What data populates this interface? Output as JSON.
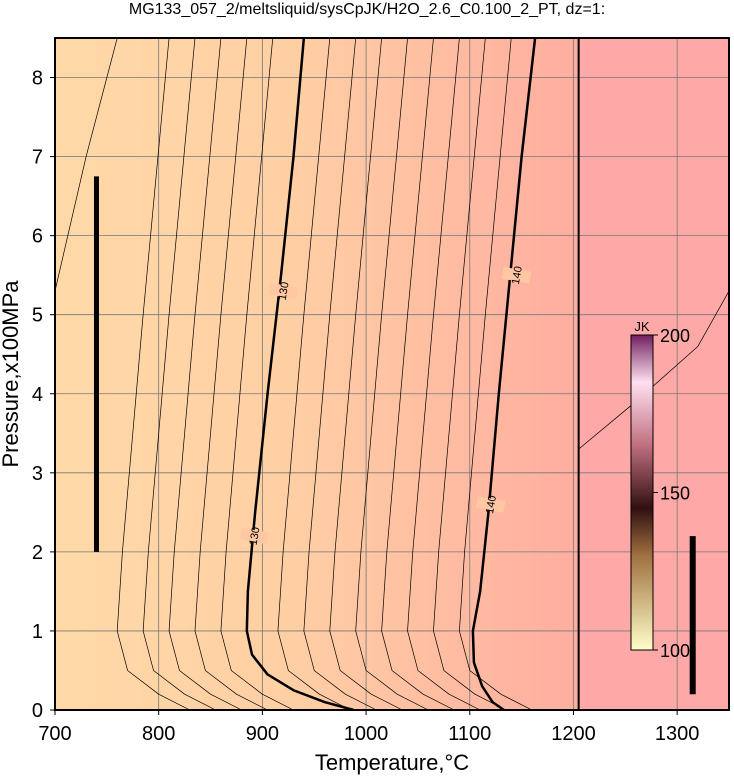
{
  "chart_data": {
    "type": "contour",
    "title": "MG133_057_2/meltsliquid/sysCpJK/H2O_2.6_C0.100_2_PT, dz=1:",
    "x_label": "Temperature,°C",
    "y_label": "Pressure,x100MPa",
    "xlim": [
      700,
      1350
    ],
    "ylim": [
      0,
      8.5
    ],
    "xticks": [
      700,
      800,
      900,
      1000,
      1100,
      1200,
      1300
    ],
    "yticks": [
      0,
      1,
      2,
      3,
      4,
      5,
      6,
      7,
      8
    ],
    "grid": true,
    "series": [
      {
        "name": "130",
        "color": "#000000",
        "width": 2.5,
        "x": [
          940,
          930,
          918,
          905,
          893,
          886,
          885,
          890,
          905,
          930,
          960,
          988
        ],
        "y": [
          8.5,
          7,
          5.5,
          4,
          2.5,
          1.5,
          1,
          0.7,
          0.45,
          0.25,
          0.1,
          0
        ]
      },
      {
        "name": "140",
        "color": "#000000",
        "width": 2.5,
        "x": [
          1163,
          1150,
          1139,
          1128,
          1118,
          1110,
          1103,
          1104,
          1112,
          1122,
          1133
        ],
        "y": [
          8.5,
          7,
          5.5,
          4,
          2.5,
          1.5,
          1,
          0.6,
          0.3,
          0.1,
          0
        ]
      },
      {
        "color": "#000000",
        "width": 2,
        "x": [
          1205,
          1205
        ],
        "y": [
          0,
          8.5
        ]
      },
      {
        "color": "#000000",
        "width": 5,
        "x": [
          740,
          740
        ],
        "y": [
          2,
          6.75
        ]
      },
      {
        "color": "#000000",
        "width": 6,
        "x": [
          1315,
          1315
        ],
        "y": [
          0.2,
          2.2
        ]
      },
      {
        "color": "#000000",
        "width": 0.7,
        "x": [
          700,
          730,
          760
        ],
        "y": [
          5.3,
          7,
          8.5
        ]
      },
      {
        "color": "#000000",
        "width": 0.7,
        "x": [
          810,
          785,
          765,
          760,
          770,
          800,
          830
        ],
        "y": [
          8.5,
          5,
          2,
          1,
          0.5,
          0.2,
          0
        ]
      },
      {
        "color": "#000000",
        "width": 0.7,
        "x": [
          835,
          810,
          790,
          785,
          795,
          825,
          855
        ],
        "y": [
          8.5,
          5,
          2,
          1,
          0.5,
          0.2,
          0
        ]
      },
      {
        "color": "#000000",
        "width": 0.7,
        "x": [
          860,
          835,
          815,
          810,
          820,
          850,
          880
        ],
        "y": [
          8.5,
          5,
          2,
          1,
          0.5,
          0.2,
          0
        ]
      },
      {
        "color": "#000000",
        "width": 0.7,
        "x": [
          885,
          860,
          840,
          835,
          845,
          875,
          905
        ],
        "y": [
          8.5,
          5,
          2,
          1,
          0.5,
          0.2,
          0
        ]
      },
      {
        "color": "#000000",
        "width": 0.7,
        "x": [
          910,
          885,
          865,
          860,
          870,
          900,
          930
        ],
        "y": [
          8.5,
          5,
          2,
          1,
          0.5,
          0.2,
          0
        ]
      },
      {
        "color": "#000000",
        "width": 0.7,
        "x": [
          965,
          940,
          920,
          915,
          925,
          955,
          985
        ],
        "y": [
          8.5,
          5,
          2,
          1,
          0.5,
          0.2,
          0
        ]
      },
      {
        "color": "#000000",
        "width": 0.7,
        "x": [
          990,
          965,
          945,
          940,
          950,
          980,
          1010
        ],
        "y": [
          8.5,
          5,
          2,
          1,
          0.5,
          0.2,
          0
        ]
      },
      {
        "color": "#000000",
        "width": 0.7,
        "x": [
          1015,
          990,
          970,
          965,
          975,
          1005,
          1035
        ],
        "y": [
          8.5,
          5,
          2,
          1,
          0.5,
          0.2,
          0
        ]
      },
      {
        "color": "#000000",
        "width": 0.7,
        "x": [
          1040,
          1015,
          995,
          990,
          1000,
          1030,
          1060
        ],
        "y": [
          8.5,
          5,
          2,
          1,
          0.5,
          0.2,
          0
        ]
      },
      {
        "color": "#000000",
        "width": 0.7,
        "x": [
          1065,
          1040,
          1020,
          1015,
          1025,
          1055,
          1085
        ],
        "y": [
          8.5,
          5,
          2,
          1,
          0.5,
          0.2,
          0
        ]
      },
      {
        "color": "#000000",
        "width": 0.7,
        "x": [
          1090,
          1065,
          1045,
          1040,
          1050,
          1080,
          1110
        ],
        "y": [
          8.5,
          5,
          2,
          1,
          0.5,
          0.2,
          0
        ]
      },
      {
        "color": "#000000",
        "width": 0.7,
        "x": [
          1115,
          1090,
          1070,
          1065,
          1075,
          1105,
          1135
        ],
        "y": [
          8.5,
          5,
          2,
          1,
          0.5,
          0.2,
          0
        ]
      },
      {
        "color": "#000000",
        "width": 0.7,
        "x": [
          1140,
          1115,
          1095,
          1090,
          1100,
          1130,
          1160
        ],
        "y": [
          8.5,
          5,
          2,
          1,
          0.5,
          0.2,
          0
        ]
      },
      {
        "color": "#000000",
        "width": 0.7,
        "x": [
          1205,
          1260,
          1320,
          1350
        ],
        "y": [
          3.3,
          3.9,
          4.6,
          5.3
        ]
      }
    ],
    "contour_labels": [
      {
        "series": 0,
        "x": 920,
        "y": 5.3
      },
      {
        "series": 0,
        "x": 892,
        "y": 2.2
      },
      {
        "series": 1,
        "x": 1145,
        "y": 5.5
      },
      {
        "series": 1,
        "x": 1120,
        "y": 2.6
      }
    ],
    "colorbar": {
      "label": "JK",
      "lim": [
        100,
        200
      ],
      "ticks": [
        100,
        150,
        200
      ]
    }
  }
}
